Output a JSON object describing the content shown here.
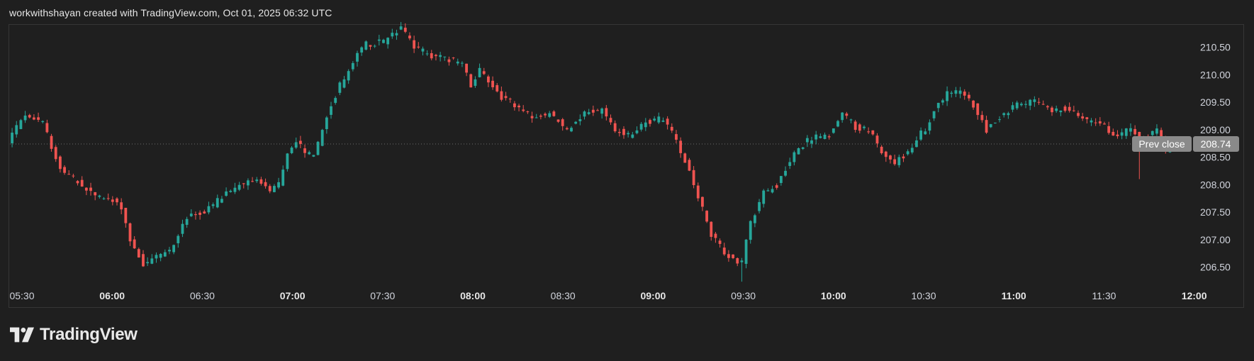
{
  "header": {
    "attribution": "workwithshayan created with TradingView.com, Oct 01, 2025 06:32 UTC"
  },
  "brand": {
    "name": "TradingView",
    "logo_icon": "tradingview-logo-icon"
  },
  "colors": {
    "background": "#1f1f1f",
    "up": "#26a69a",
    "down": "#ef5350",
    "text": "#d1d4dc",
    "label_bg": "#8a8a8a"
  },
  "chart_data": {
    "type": "candlestick",
    "ylim": [
      206.2,
      210.92
    ],
    "y_ticks": [
      "206.50",
      "207.00",
      "207.50",
      "208.00",
      "208.50",
      "209.00",
      "209.50",
      "210.00",
      "210.50"
    ],
    "x_ticks": [
      {
        "label": "05:30",
        "bold": false
      },
      {
        "label": "06:00",
        "bold": true
      },
      {
        "label": "06:30",
        "bold": false
      },
      {
        "label": "07:00",
        "bold": true
      },
      {
        "label": "07:30",
        "bold": false
      },
      {
        "label": "08:00",
        "bold": true
      },
      {
        "label": "08:30",
        "bold": false
      },
      {
        "label": "09:00",
        "bold": true
      },
      {
        "label": "09:30",
        "bold": false
      },
      {
        "label": "10:00",
        "bold": true
      },
      {
        "label": "10:30",
        "bold": false
      },
      {
        "label": "11:00",
        "bold": true
      },
      {
        "label": "11:30",
        "bold": false
      },
      {
        "label": "12:00",
        "bold": true
      }
    ],
    "prev_close": {
      "label": "Prev close",
      "value": 208.74,
      "value_text": "208.74"
    },
    "grid": false,
    "path_points": [
      [
        0,
        208.8
      ],
      [
        4,
        209.3
      ],
      [
        8,
        209.1
      ],
      [
        12,
        208.3
      ],
      [
        15,
        208.1
      ],
      [
        20,
        207.8
      ],
      [
        24,
        207.7
      ],
      [
        26,
        207.6
      ],
      [
        28,
        207.0
      ],
      [
        31,
        206.55
      ],
      [
        34,
        206.7
      ],
      [
        37,
        206.8
      ],
      [
        41,
        207.4
      ],
      [
        45,
        207.5
      ],
      [
        48,
        207.7
      ],
      [
        52,
        207.95
      ],
      [
        56,
        208.1
      ],
      [
        60,
        207.9
      ],
      [
        62,
        208.0
      ],
      [
        64,
        208.6
      ],
      [
        66,
        208.8
      ],
      [
        68,
        208.6
      ],
      [
        70,
        208.5
      ],
      [
        72,
        209.0
      ],
      [
        74,
        209.45
      ],
      [
        76,
        209.8
      ],
      [
        78,
        210.05
      ],
      [
        80,
        210.4
      ],
      [
        82,
        210.55
      ],
      [
        86,
        210.6
      ],
      [
        90,
        210.85
      ],
      [
        93,
        210.5
      ],
      [
        97,
        210.35
      ],
      [
        100,
        210.3
      ],
      [
        104,
        210.2
      ],
      [
        106,
        209.8
      ],
      [
        108,
        210.1
      ],
      [
        110,
        209.9
      ],
      [
        113,
        209.6
      ],
      [
        116,
        209.45
      ],
      [
        120,
        209.2
      ],
      [
        124,
        209.3
      ],
      [
        128,
        209.0
      ],
      [
        132,
        209.3
      ],
      [
        136,
        209.35
      ],
      [
        139,
        209.0
      ],
      [
        142,
        208.9
      ],
      [
        146,
        209.15
      ],
      [
        150,
        209.2
      ],
      [
        152,
        208.95
      ],
      [
        155,
        208.45
      ],
      [
        158,
        207.8
      ],
      [
        161,
        207.1
      ],
      [
        164,
        206.75
      ],
      [
        167,
        206.6
      ],
      [
        168,
        206.6
      ],
      [
        170,
        207.3
      ],
      [
        173,
        207.85
      ],
      [
        176,
        208.0
      ],
      [
        180,
        208.6
      ],
      [
        184,
        208.85
      ],
      [
        188,
        208.9
      ],
      [
        191,
        209.3
      ],
      [
        194,
        209.05
      ],
      [
        197,
        209.0
      ],
      [
        200,
        208.6
      ],
      [
        203,
        208.4
      ],
      [
        206,
        208.6
      ],
      [
        208,
        208.85
      ],
      [
        210,
        209.0
      ],
      [
        212,
        209.35
      ],
      [
        215,
        209.65
      ],
      [
        218,
        209.7
      ],
      [
        221,
        209.45
      ],
      [
        224,
        209.0
      ],
      [
        227,
        209.25
      ],
      [
        231,
        209.45
      ],
      [
        235,
        209.5
      ],
      [
        239,
        209.35
      ],
      [
        243,
        209.4
      ],
      [
        246,
        209.2
      ],
      [
        250,
        209.1
      ],
      [
        254,
        208.9
      ],
      [
        257,
        209.0
      ],
      [
        260,
        208.85
      ],
      [
        263,
        209.0
      ],
      [
        265,
        208.6
      ],
      [
        267,
        208.7
      ],
      [
        268,
        208.8
      ]
    ]
  }
}
